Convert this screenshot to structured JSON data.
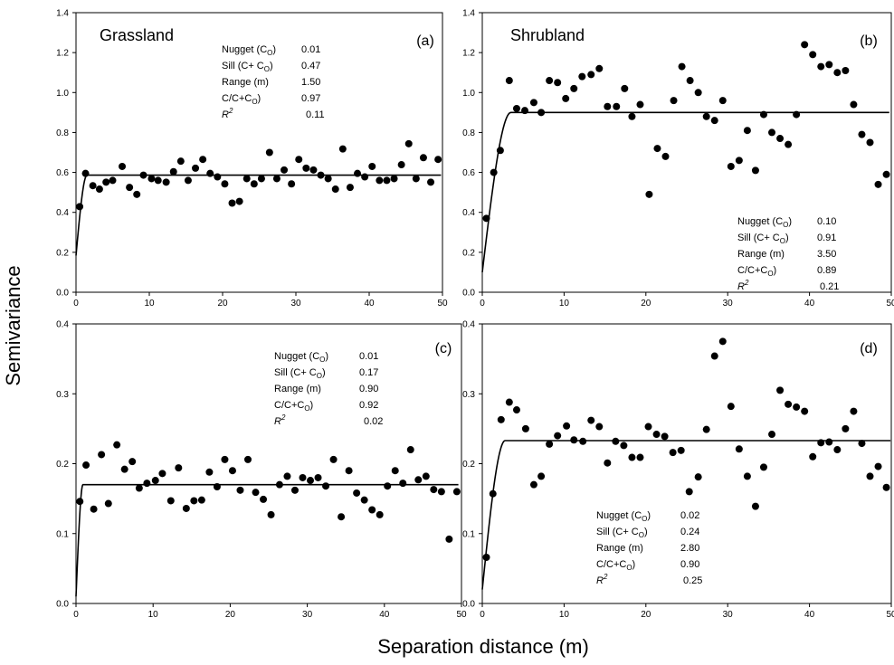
{
  "figure": {
    "y_axis_label": "Semivariance",
    "x_axis_label": "Separation distance (m)"
  },
  "chart_data": [
    {
      "type": "scatter",
      "panel_label": "(a)",
      "site": "Grassland",
      "stats": [
        {
          "label": "Nugget (C",
          "sub": "O",
          "tail": ")",
          "value": "0.01"
        },
        {
          "label": "Sill (C+ C",
          "sub": "O",
          "tail": ")",
          "value": "0.47"
        },
        {
          "label": "Range (m)",
          "sub": "",
          "tail": "",
          "value": "1.50"
        },
        {
          "label": "C/C+C",
          "sub": "O",
          "tail": ")",
          "value": "0.97"
        },
        {
          "label": "R",
          "sup": "2",
          "value": "0.11"
        }
      ],
      "xlim": [
        0,
        50
      ],
      "ylim": [
        -0.2,
        1.4
      ],
      "xticks": [
        "0",
        "10",
        "20",
        "30",
        "40",
        "50"
      ],
      "yticks": [
        "0.0",
        "0.2",
        "0.4",
        "0.6",
        "0.8",
        "1.0",
        "1.2",
        "1.4"
      ],
      "points": [
        [
          0.5,
          0.29
        ],
        [
          1.3,
          0.48
        ],
        [
          2.3,
          0.41
        ],
        [
          3.2,
          0.39
        ],
        [
          4.1,
          0.43
        ],
        [
          5.0,
          0.44
        ],
        [
          6.3,
          0.52
        ],
        [
          7.3,
          0.4
        ],
        [
          8.3,
          0.36
        ],
        [
          9.2,
          0.47
        ],
        [
          10.3,
          0.45
        ],
        [
          11.2,
          0.44
        ],
        [
          12.3,
          0.43
        ],
        [
          13.3,
          0.49
        ],
        [
          14.3,
          0.55
        ],
        [
          15.3,
          0.44
        ],
        [
          16.3,
          0.51
        ],
        [
          17.3,
          0.56
        ],
        [
          18.3,
          0.48
        ],
        [
          19.3,
          0.46
        ],
        [
          20.3,
          0.42
        ],
        [
          21.3,
          0.31
        ],
        [
          22.3,
          0.32
        ],
        [
          23.3,
          0.45
        ],
        [
          24.3,
          0.42
        ],
        [
          25.3,
          0.45
        ],
        [
          26.4,
          0.6
        ],
        [
          27.4,
          0.45
        ],
        [
          28.4,
          0.5
        ],
        [
          29.4,
          0.42
        ],
        [
          30.4,
          0.56
        ],
        [
          31.4,
          0.51
        ],
        [
          32.4,
          0.5
        ],
        [
          33.4,
          0.47
        ],
        [
          34.4,
          0.45
        ],
        [
          35.4,
          0.39
        ],
        [
          36.4,
          0.62
        ],
        [
          37.4,
          0.4
        ],
        [
          38.4,
          0.48
        ],
        [
          39.4,
          0.46
        ],
        [
          40.4,
          0.52
        ],
        [
          41.4,
          0.44
        ],
        [
          42.4,
          0.44
        ],
        [
          43.4,
          0.45
        ],
        [
          44.4,
          0.53
        ],
        [
          45.4,
          0.65
        ],
        [
          46.4,
          0.45
        ],
        [
          47.4,
          0.57
        ],
        [
          48.4,
          0.43
        ],
        [
          49.4,
          0.56
        ]
      ],
      "model": {
        "nugget": 0.01,
        "sill": 0.47,
        "range": 1.5
      }
    },
    {
      "type": "scatter",
      "panel_label": "(b)",
      "site": "Shrubland",
      "stats": [
        {
          "label": "Nugget (C",
          "sub": "O",
          "tail": ")",
          "value": "0.10"
        },
        {
          "label": "Sill (C+ C",
          "sub": "O",
          "tail": ")",
          "value": "0.91"
        },
        {
          "label": "Range (m)",
          "sub": "",
          "tail": "",
          "value": "3.50"
        },
        {
          "label": "C/C+C",
          "sub": "O",
          "tail": ")",
          "value": "0.89"
        },
        {
          "label": "R",
          "sup": "2",
          "value": "0.21"
        }
      ],
      "xlim": [
        0,
        50
      ],
      "ylim": [
        0.0,
        1.4
      ],
      "xticks": [
        "0",
        "10",
        "20",
        "30",
        "40",
        "50"
      ],
      "yticks": [
        "0.0",
        "0.2",
        "0.4",
        "0.6",
        "0.8",
        "1.0",
        "1.2",
        "1.4"
      ],
      "points": [
        [
          0.5,
          0.37
        ],
        [
          1.4,
          0.6
        ],
        [
          2.2,
          0.71
        ],
        [
          3.3,
          1.06
        ],
        [
          4.2,
          0.92
        ],
        [
          5.2,
          0.91
        ],
        [
          6.3,
          0.95
        ],
        [
          7.2,
          0.9
        ],
        [
          8.2,
          1.06
        ],
        [
          9.2,
          1.05
        ],
        [
          10.2,
          0.97
        ],
        [
          11.2,
          1.02
        ],
        [
          12.2,
          1.08
        ],
        [
          13.3,
          1.09
        ],
        [
          14.3,
          1.12
        ],
        [
          15.3,
          0.93
        ],
        [
          16.4,
          0.93
        ],
        [
          17.4,
          1.02
        ],
        [
          18.3,
          0.88
        ],
        [
          19.3,
          0.94
        ],
        [
          20.4,
          0.49
        ],
        [
          21.4,
          0.72
        ],
        [
          22.4,
          0.68
        ],
        [
          23.4,
          0.96
        ],
        [
          24.4,
          1.13
        ],
        [
          25.4,
          1.06
        ],
        [
          26.4,
          1.0
        ],
        [
          27.4,
          0.88
        ],
        [
          28.4,
          0.86
        ],
        [
          29.4,
          0.96
        ],
        [
          30.4,
          0.63
        ],
        [
          31.4,
          0.66
        ],
        [
          32.4,
          0.81
        ],
        [
          33.4,
          0.61
        ],
        [
          34.4,
          0.89
        ],
        [
          35.4,
          0.8
        ],
        [
          36.4,
          0.77
        ],
        [
          37.4,
          0.74
        ],
        [
          38.4,
          0.89
        ],
        [
          39.4,
          1.24
        ],
        [
          40.4,
          1.19
        ],
        [
          41.4,
          1.13
        ],
        [
          42.4,
          1.14
        ],
        [
          43.4,
          1.1
        ],
        [
          44.4,
          1.11
        ],
        [
          45.4,
          0.94
        ],
        [
          46.4,
          0.79
        ],
        [
          47.4,
          0.75
        ],
        [
          48.4,
          0.54
        ],
        [
          49.4,
          0.59
        ]
      ],
      "model": {
        "nugget": 0.1,
        "sill": 0.9,
        "range": 3.5
      }
    },
    {
      "type": "scatter",
      "panel_label": "(c)",
      "site": "",
      "stats": [
        {
          "label": "Nugget (C",
          "sub": "O",
          "tail": ")",
          "value": "0.01"
        },
        {
          "label": "Sill (C+ C",
          "sub": "O",
          "tail": ")",
          "value": "0.17"
        },
        {
          "label": "Range (m)",
          "sub": "",
          "tail": "",
          "value": "0.90"
        },
        {
          "label": "C/C+C",
          "sub": "O",
          "tail": ")",
          "value": "0.92"
        },
        {
          "label": "R",
          "sup": "2",
          "value": "0.02"
        }
      ],
      "xlim": [
        0,
        50
      ],
      "ylim": [
        0.0,
        0.4
      ],
      "xticks": [
        "0",
        "10",
        "20",
        "30",
        "40",
        "50"
      ],
      "yticks": [
        "0.0",
        "0.1",
        "0.2",
        "0.3",
        "0.4"
      ],
      "points": [
        [
          0.5,
          0.146
        ],
        [
          1.3,
          0.198
        ],
        [
          2.3,
          0.135
        ],
        [
          3.3,
          0.213
        ],
        [
          4.2,
          0.143
        ],
        [
          5.3,
          0.227
        ],
        [
          6.3,
          0.192
        ],
        [
          7.3,
          0.203
        ],
        [
          8.2,
          0.165
        ],
        [
          9.2,
          0.172
        ],
        [
          10.3,
          0.176
        ],
        [
          11.2,
          0.186
        ],
        [
          12.3,
          0.147
        ],
        [
          13.3,
          0.194
        ],
        [
          14.3,
          0.136
        ],
        [
          15.3,
          0.147
        ],
        [
          16.3,
          0.148
        ],
        [
          17.3,
          0.188
        ],
        [
          18.3,
          0.167
        ],
        [
          19.3,
          0.206
        ],
        [
          20.3,
          0.19
        ],
        [
          21.3,
          0.162
        ],
        [
          22.3,
          0.206
        ],
        [
          23.3,
          0.159
        ],
        [
          24.3,
          0.149
        ],
        [
          25.3,
          0.127
        ],
        [
          26.4,
          0.17
        ],
        [
          27.4,
          0.182
        ],
        [
          28.4,
          0.162
        ],
        [
          29.4,
          0.18
        ],
        [
          30.4,
          0.176
        ],
        [
          31.4,
          0.18
        ],
        [
          32.4,
          0.168
        ],
        [
          33.4,
          0.206
        ],
        [
          34.4,
          0.124
        ],
        [
          35.4,
          0.19
        ],
        [
          36.4,
          0.158
        ],
        [
          37.4,
          0.148
        ],
        [
          38.4,
          0.134
        ],
        [
          39.4,
          0.127
        ],
        [
          40.4,
          0.168
        ],
        [
          41.4,
          0.19
        ],
        [
          42.4,
          0.172
        ],
        [
          43.4,
          0.22
        ],
        [
          44.4,
          0.177
        ],
        [
          45.4,
          0.182
        ],
        [
          46.4,
          0.163
        ],
        [
          47.4,
          0.16
        ],
        [
          48.4,
          0.092
        ],
        [
          49.4,
          0.16
        ]
      ],
      "model": {
        "nugget": 0.01,
        "sill": 0.17,
        "range": 0.9
      }
    },
    {
      "type": "scatter",
      "panel_label": "(d)",
      "site": "",
      "stats": [
        {
          "label": "Nugget (C",
          "sub": "O",
          "tail": ")",
          "value": "0.02"
        },
        {
          "label": "Sill (C+ C",
          "sub": "O",
          "tail": ")",
          "value": "0.24"
        },
        {
          "label": "Range (m)",
          "sub": "",
          "tail": "",
          "value": "2.80"
        },
        {
          "label": "C/C+C",
          "sub": "O",
          "tail": ")",
          "value": "0.90"
        },
        {
          "label": "R",
          "sup": "2",
          "value": "0.25"
        }
      ],
      "xlim": [
        0,
        50
      ],
      "ylim": [
        0.0,
        0.4
      ],
      "xticks": [
        "0",
        "10",
        "20",
        "30",
        "40",
        "50"
      ],
      "yticks": [
        "0.0",
        "0.1",
        "0.2",
        "0.3",
        "0.4"
      ],
      "points": [
        [
          0.5,
          0.066
        ],
        [
          1.3,
          0.157
        ],
        [
          2.3,
          0.263
        ],
        [
          3.3,
          0.288
        ],
        [
          4.2,
          0.277
        ],
        [
          5.3,
          0.25
        ],
        [
          6.3,
          0.17
        ],
        [
          7.2,
          0.182
        ],
        [
          8.2,
          0.228
        ],
        [
          9.2,
          0.24
        ],
        [
          10.3,
          0.254
        ],
        [
          11.2,
          0.234
        ],
        [
          12.3,
          0.232
        ],
        [
          13.3,
          0.262
        ],
        [
          14.3,
          0.253
        ],
        [
          15.3,
          0.201
        ],
        [
          16.3,
          0.232
        ],
        [
          17.3,
          0.226
        ],
        [
          18.3,
          0.209
        ],
        [
          19.3,
          0.209
        ],
        [
          20.3,
          0.253
        ],
        [
          21.3,
          0.242
        ],
        [
          22.3,
          0.239
        ],
        [
          23.3,
          0.216
        ],
        [
          24.3,
          0.219
        ],
        [
          25.3,
          0.16
        ],
        [
          26.4,
          0.181
        ],
        [
          27.4,
          0.249
        ],
        [
          28.4,
          0.354
        ],
        [
          29.4,
          0.375
        ],
        [
          30.4,
          0.282
        ],
        [
          31.4,
          0.221
        ],
        [
          32.4,
          0.182
        ],
        [
          33.4,
          0.139
        ],
        [
          34.4,
          0.195
        ],
        [
          35.4,
          0.242
        ],
        [
          36.4,
          0.305
        ],
        [
          37.4,
          0.285
        ],
        [
          38.4,
          0.281
        ],
        [
          39.4,
          0.275
        ],
        [
          40.4,
          0.21
        ],
        [
          41.4,
          0.23
        ],
        [
          42.4,
          0.231
        ],
        [
          43.4,
          0.22
        ],
        [
          44.4,
          0.25
        ],
        [
          45.4,
          0.275
        ],
        [
          46.4,
          0.229
        ],
        [
          47.4,
          0.182
        ],
        [
          48.4,
          0.196
        ],
        [
          49.4,
          0.166
        ]
      ],
      "model": {
        "nugget": 0.02,
        "sill": 0.233,
        "range": 2.8
      }
    }
  ]
}
